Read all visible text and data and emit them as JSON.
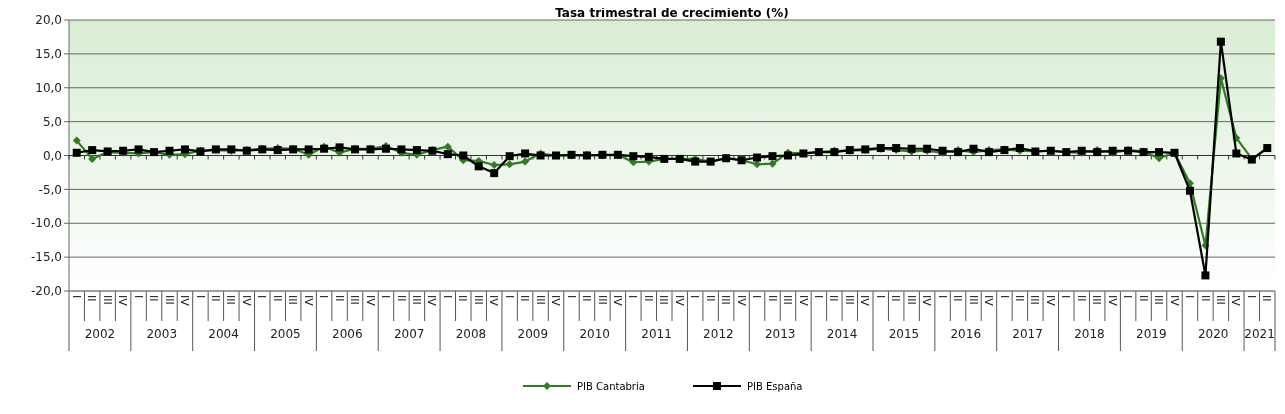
{
  "chart_data": {
    "type": "line",
    "title": "Tasa trimestral de crecimiento  (%)",
    "categories": [
      "I",
      "II",
      "III",
      "IV",
      "I",
      "II",
      "III",
      "IV",
      "I",
      "II",
      "III",
      "IV",
      "I",
      "II",
      "III",
      "IV",
      "I",
      "II",
      "III",
      "IV",
      "I",
      "II",
      "III",
      "IV",
      "I",
      "II",
      "III",
      "IV",
      "I",
      "II",
      "III",
      "IV",
      "I",
      "II",
      "III",
      "IV",
      "I",
      "II",
      "III",
      "IV",
      "I",
      "II",
      "III",
      "IV",
      "I",
      "II",
      "III",
      "IV",
      "I",
      "II",
      "III",
      "IV",
      "I",
      "II",
      "III",
      "IV",
      "I",
      "II",
      "III",
      "IV",
      "I",
      "II",
      "III",
      "IV",
      "I",
      "II",
      "III",
      "IV",
      "I",
      "II",
      "III",
      "IV",
      "I",
      "II",
      "III",
      "IV",
      "I",
      "II"
    ],
    "annotations": [
      "2002",
      "2003",
      "2004",
      "2005",
      "2006",
      "2007",
      "2008",
      "2009",
      "2010",
      "2011",
      "2012",
      "2013",
      "2014",
      "2015",
      "2016",
      "2017",
      "2018",
      "2019",
      "2020",
      "2021"
    ],
    "series": [
      {
        "name": "PIB Cantabria",
        "color": "#2e7d1f",
        "marker": "diamond",
        "values": [
          2.2,
          -0.5,
          0.5,
          0.4,
          0.3,
          0.5,
          0.1,
          0.2,
          0.7,
          0.8,
          0.7,
          0.8,
          1.0,
          1.1,
          1.0,
          0.1,
          1.3,
          0.4,
          1.0,
          1.0,
          1.4,
          0.4,
          0.1,
          0.8,
          1.3,
          -0.7,
          -0.8,
          -1.4,
          -1.3,
          -0.9,
          0.3,
          0.0,
          0.0,
          0.1,
          0.0,
          0.1,
          -1.0,
          -0.9,
          -0.5,
          -0.5,
          -0.5,
          -0.9,
          -0.4,
          -0.7,
          -1.3,
          -1.2,
          0.4,
          0.3,
          0.5,
          0.7,
          0.7,
          0.8,
          1.0,
          0.8,
          0.6,
          0.7,
          0.4,
          0.8,
          0.5,
          0.8,
          0.9,
          0.7,
          0.6,
          0.7,
          0.5,
          0.4,
          0.8,
          0.4,
          0.8,
          0.6,
          -0.4,
          0.4,
          -4.1,
          -13.3,
          11.4,
          2.6,
          -0.5,
          1.1
        ]
      },
      {
        "name": "PIB España",
        "color": "#000000",
        "marker": "square",
        "values": [
          0.4,
          0.8,
          0.6,
          0.7,
          0.9,
          0.5,
          0.7,
          0.9,
          0.6,
          0.9,
          0.9,
          0.7,
          0.9,
          0.8,
          0.9,
          0.9,
          1.0,
          1.2,
          0.9,
          0.9,
          1.0,
          0.9,
          0.8,
          0.7,
          0.2,
          0.0,
          -1.6,
          -2.6,
          -0.1,
          0.3,
          0.0,
          0.0,
          0.1,
          0.0,
          0.1,
          0.1,
          -0.1,
          -0.2,
          -0.5,
          -0.5,
          -0.9,
          -0.9,
          -0.4,
          -0.7,
          -0.3,
          -0.1,
          0.0,
          0.3,
          0.5,
          0.5,
          0.8,
          0.9,
          1.1,
          1.1,
          1.0,
          1.0,
          0.7,
          0.5,
          1.0,
          0.5,
          0.8,
          1.1,
          0.6,
          0.7,
          0.5,
          0.7,
          0.5,
          0.7,
          0.7,
          0.5,
          0.5,
          0.4,
          -5.2,
          -17.7,
          16.8,
          0.3,
          -0.6,
          1.1
        ]
      }
    ],
    "ylim": [
      -20,
      20
    ],
    "yticks": [
      {
        "value": 20,
        "label": "20,0"
      },
      {
        "value": 15,
        "label": "15,0"
      },
      {
        "value": 10,
        "label": "10,0"
      },
      {
        "value": 5,
        "label": "5,0"
      },
      {
        "value": 0,
        "label": "0,0"
      },
      {
        "value": -5,
        "label": "-5,0"
      },
      {
        "value": -10,
        "label": "-10,0"
      },
      {
        "value": -15,
        "label": "-15,0"
      },
      {
        "value": -20,
        "label": "-20,0"
      }
    ],
    "grid": "y",
    "legend": "bottom",
    "line_style": "solid"
  }
}
